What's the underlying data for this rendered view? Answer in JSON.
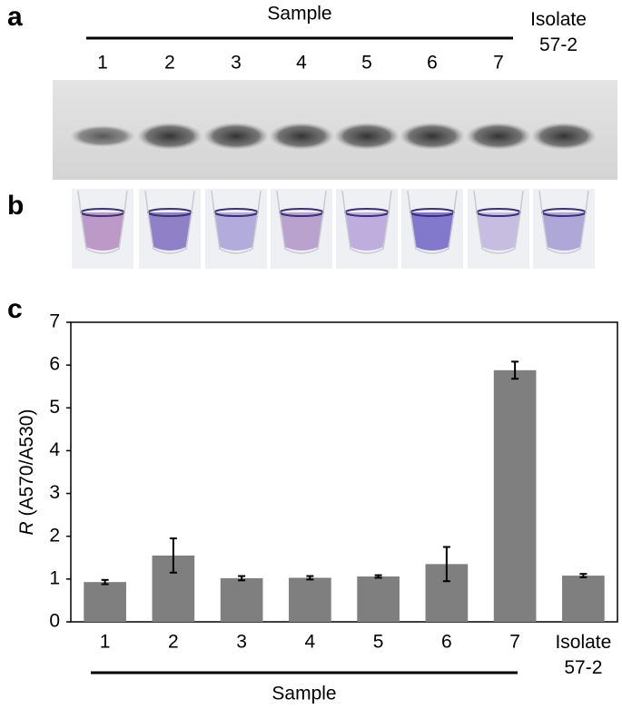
{
  "panel_labels": [
    "a",
    "b",
    "c"
  ],
  "gel": {
    "header": "Sample",
    "lanes": [
      "1",
      "2",
      "3",
      "4",
      "5",
      "6",
      "7"
    ],
    "control": "Isolate 57-2"
  },
  "chart_data": {
    "type": "bar",
    "categories": [
      "1",
      "2",
      "3",
      "4",
      "5",
      "6",
      "7",
      "Isolate 57-2"
    ],
    "values": [
      0.93,
      1.55,
      1.02,
      1.03,
      1.06,
      1.35,
      5.88,
      1.08
    ],
    "errors": [
      0.05,
      0.4,
      0.05,
      0.04,
      0.03,
      0.4,
      0.2,
      0.04
    ],
    "color": "#7f7f7f",
    "xlabel": "Sample",
    "ylabel": {
      "symbol": "R",
      "text": "(A570/A530)"
    },
    "ylim": [
      0,
      7
    ],
    "yticks": [
      0,
      1,
      2,
      3,
      4,
      5,
      6,
      7
    ]
  }
}
